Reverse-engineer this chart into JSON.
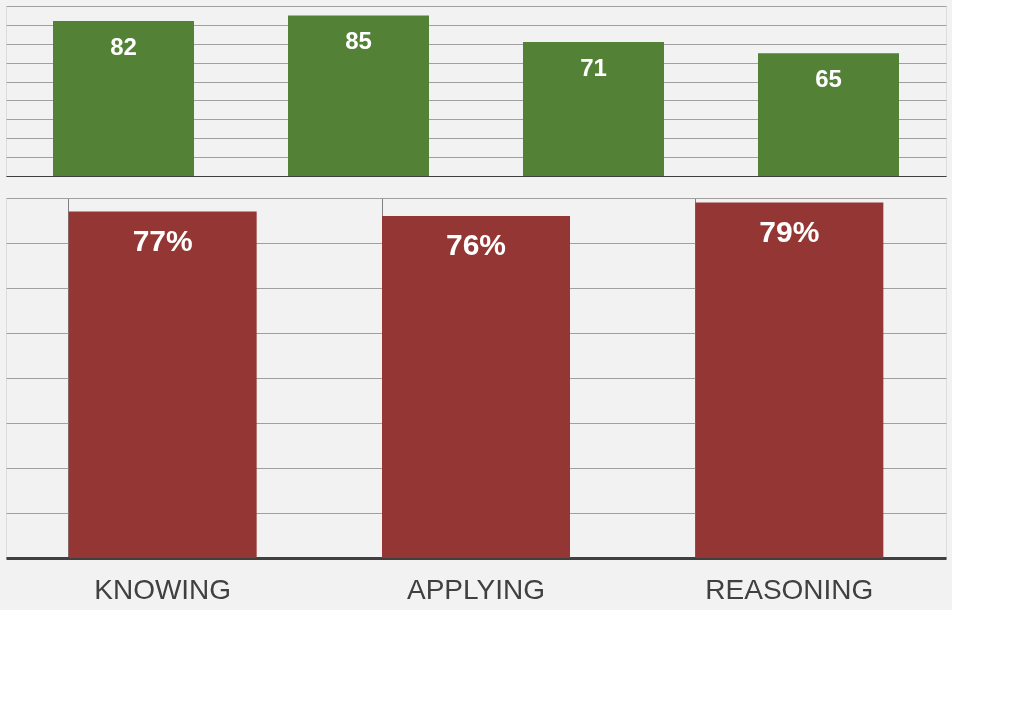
{
  "chart_data": [
    {
      "type": "bar",
      "categories": [
        null,
        null,
        null,
        null
      ],
      "values": [
        82,
        85,
        71,
        65
      ],
      "color": "#538135",
      "data_labels": true,
      "grid": "y",
      "tick_labels": false
    },
    {
      "type": "bar",
      "categories": [
        "KNOWING",
        "APPLYING",
        "REASONING"
      ],
      "values": [
        77,
        76,
        79
      ],
      "color": "#943634",
      "value_labels": [
        "77%",
        "76%",
        "79%"
      ],
      "grid": true,
      "tick_labels": "x"
    }
  ]
}
